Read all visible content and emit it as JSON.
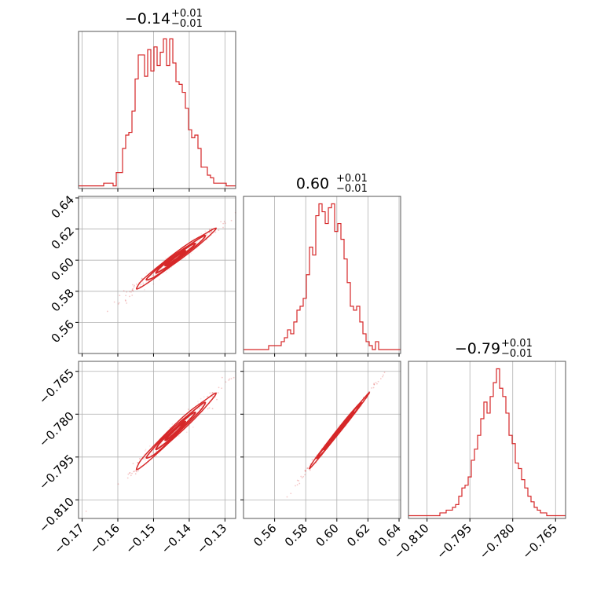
{
  "chart_data": {
    "type": "corner",
    "color": "#d62728",
    "grid": true,
    "parameters": [
      {
        "title": "−0.14",
        "title_upper": "+0.01",
        "title_lower": "−0.01",
        "median": -0.144,
        "sigma": 0.0055,
        "range": [
          -0.171,
          -0.127
        ],
        "ticks": [
          -0.17,
          -0.16,
          -0.15,
          -0.14,
          -0.13
        ],
        "tick_labels": [
          "−0.17",
          "−0.16",
          "−0.15",
          "−0.14",
          "−0.13"
        ]
      },
      {
        "title": "0.60",
        "title_upper": "+0.01",
        "title_lower": "−0.01",
        "median": 0.601,
        "sigma": 0.0095,
        "range": [
          0.54,
          0.641
        ],
        "ticks": [
          0.56,
          0.58,
          0.6,
          0.62,
          0.64
        ],
        "tick_labels": [
          "0.56",
          "0.58",
          "0.60",
          "0.62",
          "0.64"
        ]
      },
      {
        "title": "−0.79",
        "title_upper": "+0.01",
        "title_lower": "−0.01",
        "median": -0.786,
        "sigma": 0.0065,
        "range": [
          -0.8165,
          -0.7615
        ],
        "ticks": [
          -0.81,
          -0.795,
          -0.78,
          -0.765
        ],
        "tick_labels": [
          "−0.810",
          "−0.795",
          "−0.780",
          "−0.765"
        ]
      }
    ],
    "histograms": [
      {
        "param": 0,
        "bin_range": [
          -0.171,
          -0.127
        ],
        "counts": [
          1,
          1,
          1,
          1,
          1,
          1,
          1,
          1,
          2,
          2,
          2,
          1,
          6,
          6,
          15,
          20,
          21,
          29,
          41,
          50,
          50,
          42,
          52,
          44,
          53,
          46,
          51,
          56,
          46,
          56,
          47,
          40,
          39,
          36,
          30,
          22,
          19,
          20,
          15,
          8,
          8,
          5,
          4,
          2,
          2,
          2,
          2,
          1,
          1,
          1
        ]
      },
      {
        "param": 1,
        "bin_range": [
          0.54,
          0.641
        ],
        "counts": [
          1,
          1,
          1,
          1,
          1,
          1,
          1,
          1,
          2,
          2,
          2,
          2,
          3,
          4,
          6,
          5,
          8,
          11,
          12,
          14,
          20,
          27,
          25,
          35,
          38,
          36,
          33,
          37,
          38,
          31,
          33,
          29,
          24,
          18,
          12,
          11,
          12,
          8,
          5,
          3,
          2,
          1,
          3,
          1,
          1,
          1,
          1,
          1,
          1,
          1
        ]
      },
      {
        "param": 2,
        "bin_range": [
          -0.8165,
          -0.7615
        ],
        "counts": [
          1,
          1,
          1,
          1,
          1,
          1,
          1,
          1,
          1,
          1,
          2,
          2,
          3,
          3,
          4,
          5,
          8,
          11,
          12,
          15,
          21,
          25,
          30,
          36,
          42,
          38,
          44,
          49,
          54,
          47,
          44,
          38,
          30,
          27,
          20,
          18,
          14,
          11,
          8,
          6,
          4,
          3,
          2,
          2,
          1,
          1,
          1,
          1,
          1,
          1
        ]
      }
    ],
    "correlations": [
      {
        "x": 0,
        "y": 1,
        "rho": 0.985
      },
      {
        "x": 0,
        "y": 2,
        "rho": 0.985
      },
      {
        "x": 1,
        "y": 2,
        "rho": 0.997
      }
    ]
  }
}
